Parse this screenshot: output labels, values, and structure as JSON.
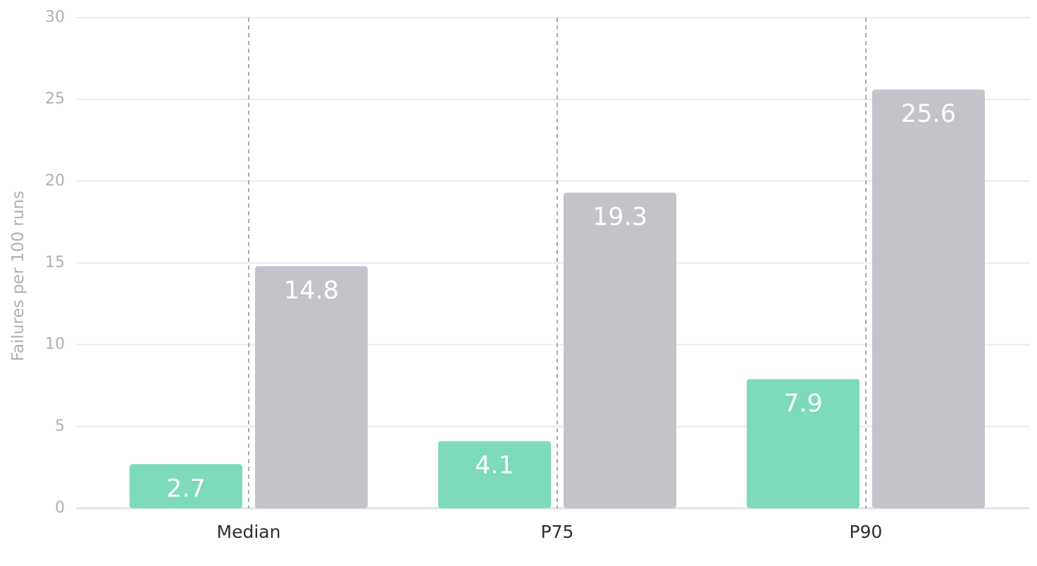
{
  "chart_data": {
    "type": "bar",
    "categories": [
      "Median",
      "P75",
      "P90"
    ],
    "series": [
      {
        "values": [
          2.7,
          4.1,
          7.9
        ],
        "color": "#7ddbb9"
      },
      {
        "values": [
          14.8,
          19.3,
          25.6
        ],
        "color": "#c3c3ca"
      }
    ],
    "ylabel": "Failures per 100 runs",
    "xlabel": "",
    "ylim": [
      0,
      30
    ],
    "yticks": [
      0,
      5,
      10,
      15,
      20,
      25,
      30
    ],
    "grid": true,
    "legend": "none"
  }
}
